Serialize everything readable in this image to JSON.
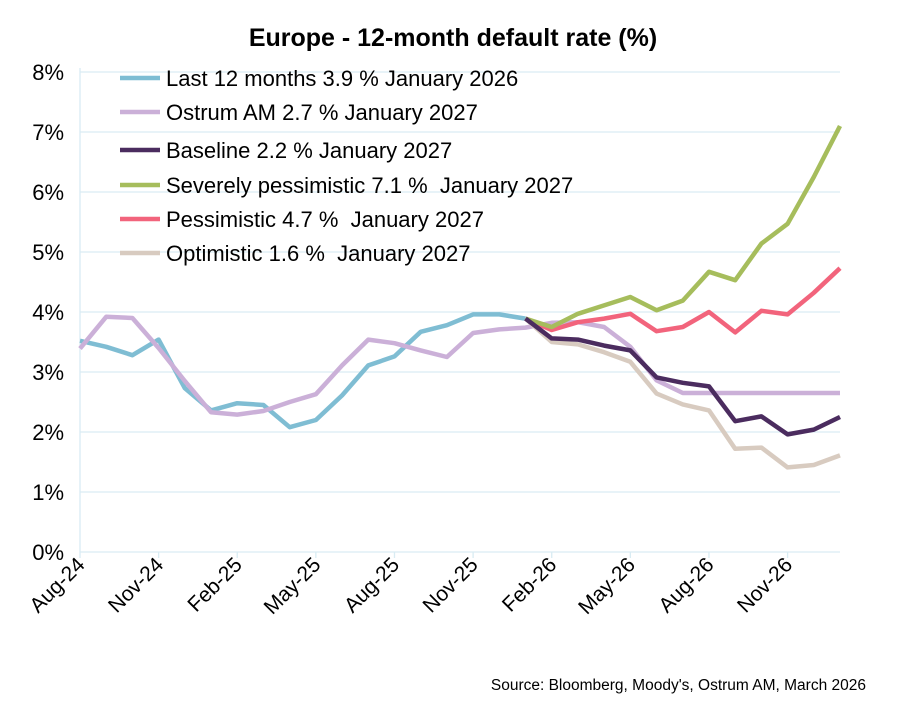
{
  "chart_data": {
    "type": "line",
    "title": "Europe - 12-month default rate (%)",
    "xlabel": "",
    "ylabel": "",
    "ylim": [
      0,
      8
    ],
    "yticks": [
      "0%",
      "1%",
      "2%",
      "3%",
      "4%",
      "5%",
      "6%",
      "7%",
      "8%"
    ],
    "grid": true,
    "legend_position": "top-left",
    "x": [
      "Aug-24",
      "Sep-24",
      "Oct-24",
      "Nov-24",
      "Dec-24",
      "Jan-25",
      "Feb-25",
      "Mar-25",
      "Apr-25",
      "May-25",
      "Jun-25",
      "Jul-25",
      "Aug-25",
      "Sep-25",
      "Oct-25",
      "Nov-25",
      "Dec-25",
      "Jan-26",
      "Feb-26",
      "Mar-26",
      "Apr-26",
      "May-26",
      "Jun-26",
      "Jul-26",
      "Aug-26",
      "Sep-26",
      "Oct-26",
      "Nov-26",
      "Dec-26",
      "Jan-27"
    ],
    "xtick_labels": [
      "Aug-24",
      "Nov-24",
      "Feb-25",
      "May-25",
      "Aug-25",
      "Nov-25",
      "Feb-26",
      "May-26",
      "Aug-26",
      "Nov-26"
    ],
    "series": [
      {
        "name": "Last 12 months 3.9 % January 2026",
        "color": "#7fbdd3",
        "values": [
          3.52,
          3.42,
          3.28,
          3.54,
          2.73,
          2.36,
          2.48,
          2.45,
          2.08,
          2.2,
          2.61,
          3.11,
          3.26,
          3.67,
          3.78,
          3.96,
          3.96,
          3.89,
          null,
          null,
          null,
          null,
          null,
          null,
          null,
          null,
          null,
          null,
          null,
          null
        ]
      },
      {
        "name": "Ostrum AM 2.7 % January 2027",
        "color": "#cbb0d8",
        "values": [
          3.39,
          3.92,
          3.9,
          3.4,
          2.85,
          2.33,
          2.29,
          2.35,
          2.5,
          2.63,
          3.11,
          3.54,
          3.48,
          3.36,
          3.25,
          3.65,
          3.71,
          3.74,
          3.82,
          3.83,
          3.75,
          3.42,
          2.86,
          2.65,
          2.65,
          2.65,
          2.65,
          2.65,
          2.65,
          2.65
        ]
      },
      {
        "name": "Baseline 2.2 % January 2027",
        "color": "#4b2c5f",
        "values": [
          null,
          null,
          null,
          null,
          null,
          null,
          null,
          null,
          null,
          null,
          null,
          null,
          null,
          null,
          null,
          null,
          null,
          3.89,
          3.56,
          3.54,
          3.44,
          3.36,
          2.91,
          2.82,
          2.76,
          2.18,
          2.26,
          1.96,
          2.04,
          2.25
        ]
      },
      {
        "name": "Severely pessimistic 7.1 %  January 2027",
        "color": "#a6bd5c",
        "values": [
          null,
          null,
          null,
          null,
          null,
          null,
          null,
          null,
          null,
          null,
          null,
          null,
          null,
          null,
          null,
          null,
          null,
          3.89,
          3.75,
          3.97,
          4.11,
          4.25,
          4.03,
          4.19,
          4.67,
          4.53,
          5.14,
          5.47,
          6.25,
          7.1
        ]
      },
      {
        "name": "Pessimistic 4.7 %  January 2027",
        "color": "#f2647c",
        "values": [
          null,
          null,
          null,
          null,
          null,
          null,
          null,
          null,
          null,
          null,
          null,
          null,
          null,
          null,
          null,
          null,
          null,
          3.89,
          3.7,
          3.83,
          3.89,
          3.97,
          3.68,
          3.75,
          4.0,
          3.66,
          4.02,
          3.96,
          4.32,
          4.73
        ]
      },
      {
        "name": "Optimistic 1.6 %  January 2027",
        "color": "#d8cbc0",
        "values": [
          null,
          null,
          null,
          null,
          null,
          null,
          null,
          null,
          null,
          null,
          null,
          null,
          null,
          null,
          null,
          null,
          null,
          3.89,
          3.5,
          3.46,
          3.33,
          3.17,
          2.64,
          2.46,
          2.36,
          1.72,
          1.74,
          1.41,
          1.45,
          1.61
        ]
      }
    ],
    "source": "Source: Bloomberg, Moody's, Ostrum AM, March 2026"
  }
}
